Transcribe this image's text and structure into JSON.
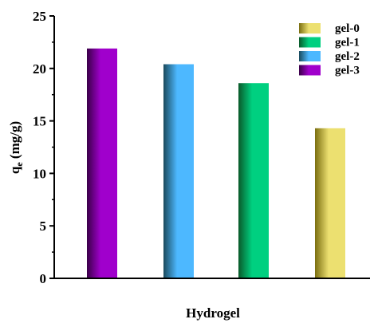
{
  "chart_data": {
    "type": "bar",
    "title": "",
    "xlabel": "Hydrogel",
    "ylabel": "q",
    "ylabel_subscript": "e",
    "ylabel_unit": " (mg/g)",
    "ylim": [
      0,
      25
    ],
    "yticks": [
      0,
      5,
      10,
      15,
      20,
      25
    ],
    "yticks_minor": [
      2.5,
      7.5,
      12.5,
      17.5,
      22.5
    ],
    "grid": false,
    "legend_position": "top-right",
    "bars": [
      {
        "name": "gel-3",
        "value": 21.9,
        "color": "#a000cc",
        "shade": "#3a0048"
      },
      {
        "name": "gel-2",
        "value": 20.4,
        "color": "#4db8ff",
        "shade": "#1a4a5c"
      },
      {
        "name": "gel-1",
        "value": 18.6,
        "color": "#00d080",
        "shade": "#0a5a2a"
      },
      {
        "name": "gel-0",
        "value": 14.3,
        "color": "#ece070",
        "shade": "#7a6e10"
      }
    ],
    "legend": [
      {
        "name": "gel-0",
        "color": "#ece070",
        "shade": "#7a6e10"
      },
      {
        "name": "gel-1",
        "color": "#00d080",
        "shade": "#0a5a2a"
      },
      {
        "name": "gel-2",
        "color": "#4db8ff",
        "shade": "#1a4a5c"
      },
      {
        "name": "gel-3",
        "color": "#a000cc",
        "shade": "#3a0048"
      }
    ]
  }
}
